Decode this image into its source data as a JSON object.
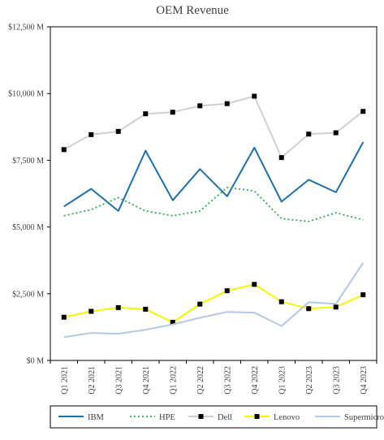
{
  "chart_data": {
    "type": "line",
    "title": "OEM Revenue",
    "xlabel": "",
    "ylabel": "",
    "categories": [
      "Q1 2021",
      "Q2 2021",
      "Q3 2021",
      "Q4 2021",
      "Q1 2022",
      "Q2 2022",
      "Q3 2022",
      "Q4 2022",
      "Q1 2023",
      "Q2 2023",
      "Q3 2023",
      "Q4 2023"
    ],
    "y_ticks": [
      0,
      2500,
      5000,
      7500,
      10000,
      12500
    ],
    "y_tick_labels": [
      "$0 M",
      "$2,500 M",
      "$5,000 M",
      "$7,500 M",
      "$10,000 M",
      "$12,500 M"
    ],
    "ylim": [
      0,
      12500
    ],
    "grid": false,
    "legend_position": "bottom",
    "series": [
      {
        "name": "IBM",
        "color": "#1f6fa6",
        "style": "solid",
        "marker": "none",
        "values": [
          5770,
          6430,
          5600,
          7860,
          6000,
          7170,
          6150,
          7970,
          5950,
          6770,
          6300,
          8180
        ]
      },
      {
        "name": "HPE",
        "color": "#2eaa4a",
        "style": "dotted",
        "marker": "none",
        "values": [
          5420,
          5650,
          6100,
          5600,
          5420,
          5600,
          6480,
          6350,
          5310,
          5210,
          5530,
          5270
        ]
      },
      {
        "name": "Dell",
        "color": "#d0d0d0",
        "style": "solid",
        "marker": "square",
        "values": [
          7900,
          8460,
          8580,
          9240,
          9300,
          9540,
          9620,
          9900,
          7600,
          8480,
          8530,
          9330
        ]
      },
      {
        "name": "Lenovo",
        "color": "#f5f500",
        "style": "solid",
        "marker": "square",
        "values": [
          1620,
          1840,
          1980,
          1920,
          1430,
          2110,
          2610,
          2850,
          2200,
          1940,
          2000,
          2460
        ]
      },
      {
        "name": "Supermicro",
        "color": "#b4c7e7",
        "style": "solid",
        "marker": "none",
        "values": [
          870,
          1030,
          1000,
          1150,
          1350,
          1600,
          1820,
          1790,
          1290,
          2180,
          2120,
          3660
        ]
      }
    ]
  }
}
